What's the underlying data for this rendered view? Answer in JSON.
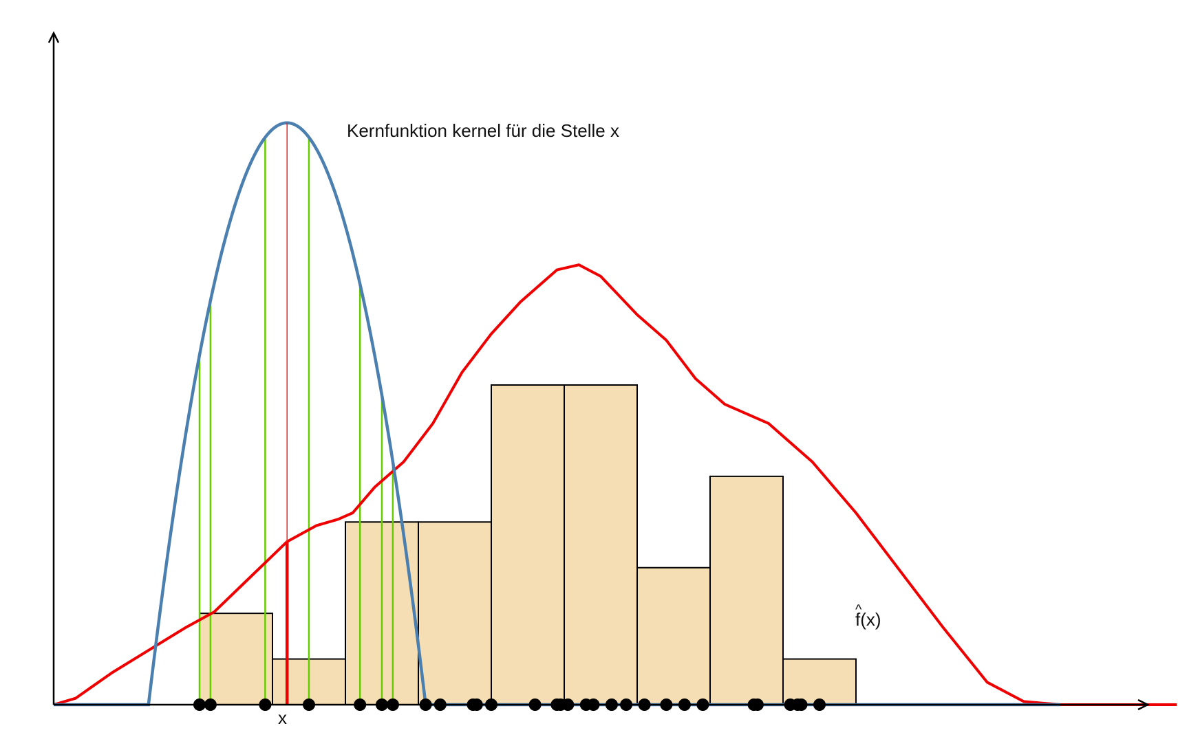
{
  "labels": {
    "kernel": "Kernfunktion kernel für die Stelle x",
    "x_marker": "x",
    "f_hat": "f(x)",
    "f_hat_hat": "^"
  },
  "colors": {
    "axis": "#000000",
    "histogram_fill": "#f5deb3",
    "histogram_stroke": "#000000",
    "kernel_curve": "#4a7fb0",
    "kde_curve": "#ee0000",
    "kernel_weight_lines": "#66cc00",
    "center_line": "#ee2222",
    "data_points": "#000000"
  },
  "icons": {
    "x_axis": "arrow-right",
    "y_axis": "arrow-up"
  },
  "chart_data": {
    "type": "histogram",
    "x_axis": {
      "min": 0,
      "max": 16
    },
    "y_axis": {
      "min": 0,
      "max": 1
    },
    "kernel_center": 3.2,
    "kernel_support": [
      1.3,
      5.0
    ],
    "histogram": {
      "bin_edges": [
        2,
        3,
        4,
        5,
        6,
        7,
        8,
        9,
        10,
        11,
        12
      ],
      "heights": [
        2,
        1,
        4,
        4,
        7,
        7,
        3,
        5,
        1,
        0
      ],
      "ylim": [
        0,
        14
      ]
    },
    "kernel_weight_points": [
      2.0,
      2.15,
      2.9,
      3.5,
      4.2,
      4.5,
      4.65
    ],
    "data_points": [
      2.0,
      2.15,
      2.9,
      3.5,
      4.2,
      4.5,
      4.65,
      5.1,
      5.3,
      5.75,
      5.8,
      6.0,
      6.6,
      6.9,
      6.95,
      7.05,
      7.3,
      7.4,
      7.65,
      7.85,
      8.1,
      8.4,
      8.65,
      8.9,
      9.6,
      9.65,
      10.1,
      10.2,
      10.25,
      10.5
    ],
    "kde_curve": [
      [
        0.0,
        0.0
      ],
      [
        0.3,
        0.01
      ],
      [
        0.8,
        0.05
      ],
      [
        1.3,
        0.085
      ],
      [
        1.8,
        0.12
      ],
      [
        2.2,
        0.145
      ],
      [
        2.7,
        0.2
      ],
      [
        3.2,
        0.255
      ],
      [
        3.6,
        0.28
      ],
      [
        3.9,
        0.29
      ],
      [
        4.1,
        0.3
      ],
      [
        4.4,
        0.34
      ],
      [
        4.8,
        0.38
      ],
      [
        5.2,
        0.44
      ],
      [
        5.6,
        0.52
      ],
      [
        6.0,
        0.58
      ],
      [
        6.4,
        0.63
      ],
      [
        6.9,
        0.68
      ],
      [
        7.2,
        0.688
      ],
      [
        7.5,
        0.67
      ],
      [
        8.0,
        0.61
      ],
      [
        8.4,
        0.57
      ],
      [
        8.8,
        0.51
      ],
      [
        9.2,
        0.47
      ],
      [
        9.8,
        0.44
      ],
      [
        10.4,
        0.38
      ],
      [
        11.0,
        0.3
      ],
      [
        11.6,
        0.21
      ],
      [
        12.2,
        0.12
      ],
      [
        12.8,
        0.035
      ],
      [
        13.3,
        0.005
      ],
      [
        13.8,
        0.0
      ],
      [
        15.4,
        0.0
      ]
    ]
  }
}
